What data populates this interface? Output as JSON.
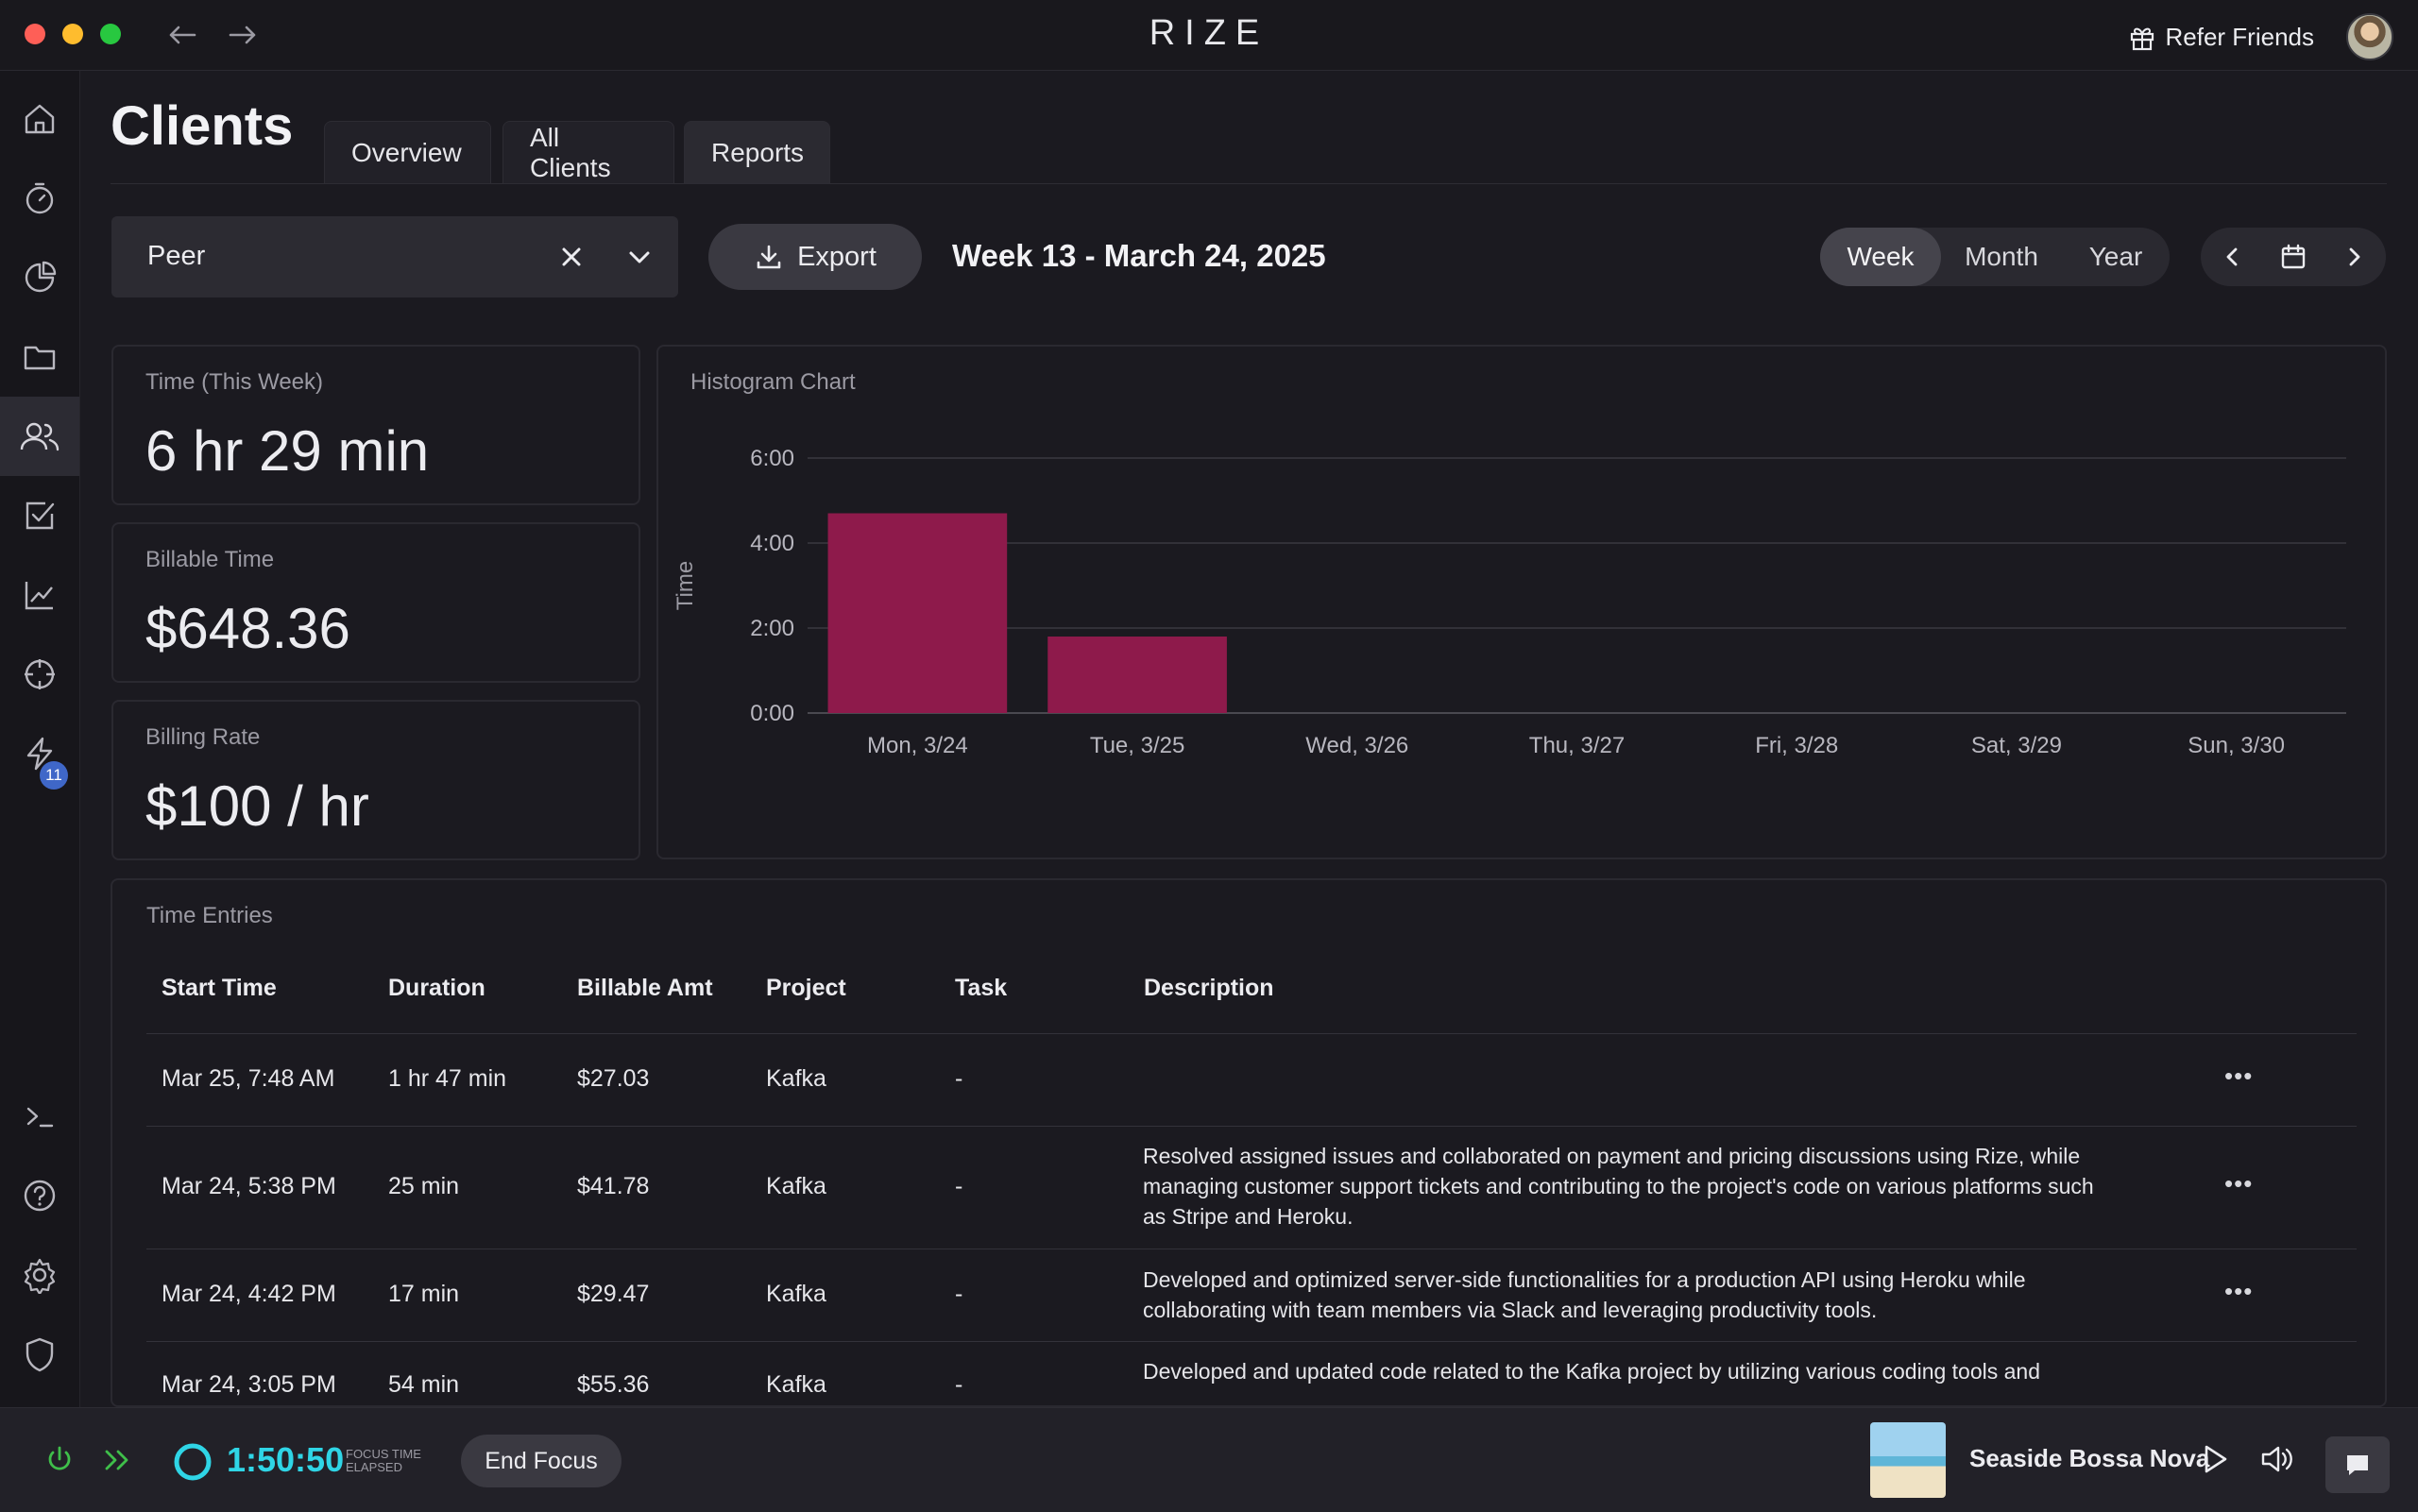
{
  "titlebar": {
    "brand": "RIZE",
    "refer_label": "Refer Friends",
    "icons": [
      "back-arrow-icon",
      "forward-arrow-icon",
      "gift-icon"
    ]
  },
  "sidebar": {
    "items": [
      {
        "name": "home",
        "icon": "home-icon"
      },
      {
        "name": "timer",
        "icon": "stopwatch-icon"
      },
      {
        "name": "reports",
        "icon": "pie-chart-icon"
      },
      {
        "name": "projects",
        "icon": "folder-icon"
      },
      {
        "name": "clients",
        "icon": "users-icon",
        "active": true
      },
      {
        "name": "tasks",
        "icon": "checkbox-icon"
      },
      {
        "name": "analytics",
        "icon": "trend-icon"
      },
      {
        "name": "focus",
        "icon": "crosshair-icon"
      },
      {
        "name": "automations",
        "icon": "bolt-icon",
        "badge": "11"
      }
    ],
    "bottom_items": [
      "terminal-icon",
      "help-icon",
      "settings-icon",
      "shield-icon"
    ]
  },
  "page": {
    "title": "Clients",
    "tabs": [
      {
        "label": "Overview"
      },
      {
        "label": "All Clients"
      },
      {
        "label": "Reports",
        "active": true
      }
    ]
  },
  "toolbar": {
    "client_value": "Peer",
    "export_label": "Export",
    "week_label": "Week 13 - March 24, 2025",
    "ranges": [
      {
        "label": "Week",
        "active": true
      },
      {
        "label": "Month"
      },
      {
        "label": "Year"
      }
    ]
  },
  "stats": {
    "time_label": "Time (This Week)",
    "time_value": "6 hr 29 min",
    "billable_label": "Billable Time",
    "billable_value": "$648.36",
    "rate_label": "Billing Rate",
    "rate_value": "$100 / hr"
  },
  "chart_data": {
    "type": "bar",
    "title": "Histogram Chart",
    "ylabel": "Time",
    "xlabel": "",
    "categories": [
      "Mon, 3/24",
      "Tue, 3/25",
      "Wed, 3/26",
      "Thu, 3/27",
      "Fri, 3/28",
      "Sat, 3/29",
      "Sun, 3/30"
    ],
    "values_hours": [
      4.7,
      1.8,
      0,
      0,
      0,
      0,
      0
    ],
    "yticks": [
      "0:00",
      "2:00",
      "4:00",
      "6:00"
    ],
    "ylim": [
      0,
      6
    ],
    "grid": true,
    "color": "#8e1a4b"
  },
  "entries": {
    "title": "Time Entries",
    "columns": [
      "Start Time",
      "Duration",
      "Billable Amt",
      "Project",
      "Task",
      "Description"
    ],
    "rows": [
      {
        "start": "Mar 25, 7:48 AM",
        "duration": "1 hr 47 min",
        "amount": "$27.03",
        "project": "Kafka",
        "task": "-",
        "description": ""
      },
      {
        "start": "Mar 24, 5:38 PM",
        "duration": "25 min",
        "amount": "$41.78",
        "project": "Kafka",
        "task": "-",
        "description": "Resolved assigned issues and collaborated on payment and pricing discussions using Rize, while managing customer support tickets and contributing to the project's code on various platforms such as Stripe and Heroku."
      },
      {
        "start": "Mar 24, 4:42 PM",
        "duration": "17 min",
        "amount": "$29.47",
        "project": "Kafka",
        "task": "-",
        "description": "Developed and optimized server-side functionalities for a production API using Heroku while collaborating with team members via Slack and leveraging productivity tools."
      },
      {
        "start": "Mar 24, 3:05 PM",
        "duration": "54 min",
        "amount": "$55.36",
        "project": "Kafka",
        "task": "-",
        "description": "Developed and updated code related to the Kafka project by utilizing various coding tools and"
      }
    ],
    "more_label": "•••"
  },
  "footer": {
    "timer": "1:50:50",
    "focus_line1": "FOCUS TIME",
    "focus_line2": "ELAPSED",
    "end_focus_label": "End Focus",
    "track_title": "Seaside Bossa Nova",
    "accent": "#2fd5e6",
    "green": "#3fbf4a"
  }
}
